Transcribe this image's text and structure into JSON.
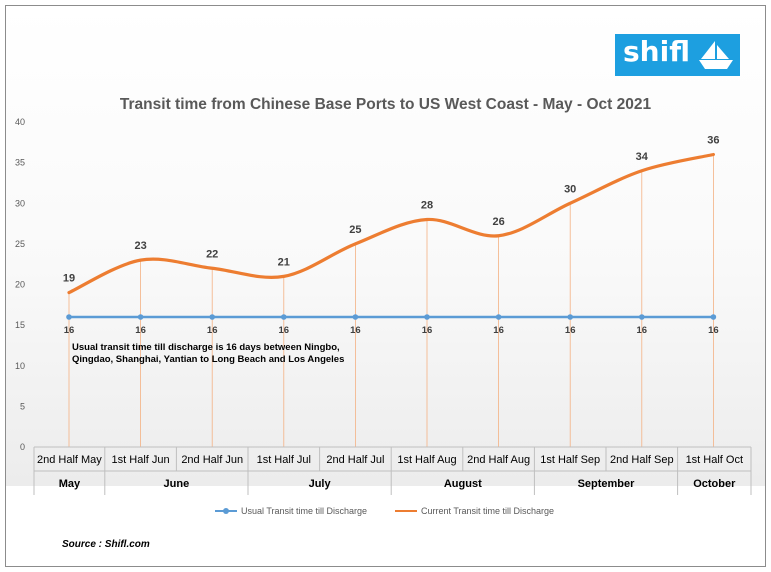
{
  "logo": {
    "text": "shifl"
  },
  "source": "Source : Shifl.com",
  "annotation": {
    "line1": "Usual transit time till discharge is 16 days between Ningbo,",
    "line2": "Qingdao, Shanghai, Yantian to Long Beach and Los Angeles"
  },
  "chart_data": {
    "type": "line",
    "title": "Transit time from Chinese Base Ports to US West Coast - May - Oct 2021",
    "categories": [
      "2nd Half May",
      "1st Half Jun",
      "2nd Half Jun",
      "1st Half Jul",
      "2nd Half Jul",
      "1st Half Aug",
      "2nd Half Aug",
      "1st Half Sep",
      "2nd Half  Sep",
      "1st Half Oct"
    ],
    "groups": [
      {
        "label": "May",
        "count": 1
      },
      {
        "label": "June",
        "count": 2
      },
      {
        "label": "July",
        "count": 2
      },
      {
        "label": "August",
        "count": 2
      },
      {
        "label": "September",
        "count": 2
      },
      {
        "label": "October",
        "count": 1
      }
    ],
    "series": [
      {
        "name": "Usual Transit time till Discharge",
        "values": [
          16,
          16,
          16,
          16,
          16,
          16,
          16,
          16,
          16,
          16
        ],
        "color": "#5b9bd5",
        "smooth": false,
        "markers": true
      },
      {
        "name": "Current Transit time till Discharge",
        "values": [
          19,
          23,
          22,
          21,
          25,
          28,
          26,
          30,
          34,
          36
        ],
        "color": "#ed7d31",
        "smooth": true,
        "markers": false
      }
    ],
    "ylim": [
      0,
      40
    ],
    "yticks": [
      0,
      5,
      10,
      15,
      20,
      25,
      30,
      35,
      40
    ],
    "drop_lines": true,
    "drop_line_color": "#f4b183",
    "legend_position": "bottom",
    "grid": false
  }
}
